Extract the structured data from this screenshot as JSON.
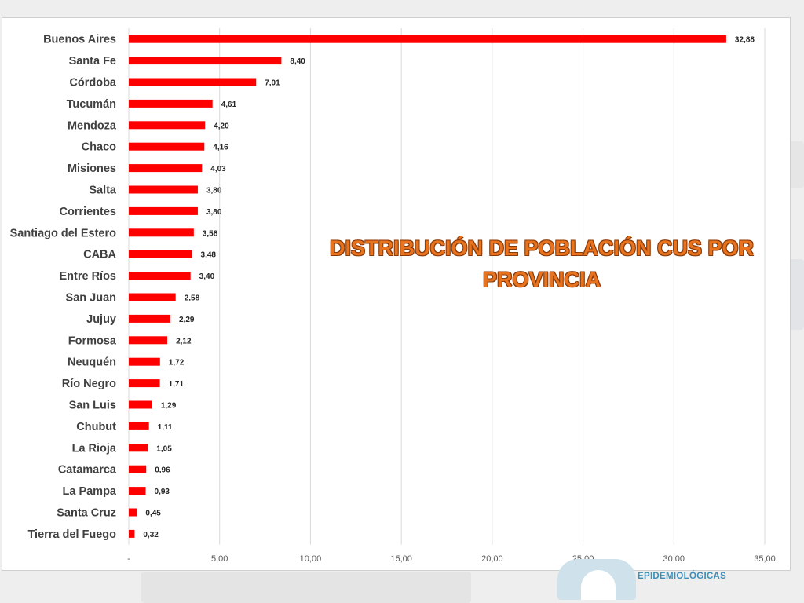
{
  "chart_data": {
    "type": "bar",
    "orientation": "horizontal",
    "title_lines": [
      "DISTRIBUCIÓN DE POBLACIÓN CUS POR",
      "PROVINCIA"
    ],
    "categories": [
      "Buenos Aires",
      "Santa Fe",
      "Córdoba",
      "Tucumán",
      "Mendoza",
      "Chaco",
      "Misiones",
      "Salta",
      "Corrientes",
      "Santiago del Estero",
      "CABA",
      "Entre Ríos",
      "San Juan",
      "Jujuy",
      "Formosa",
      "Neuquén",
      "Río Negro",
      "San Luis",
      "Chubut",
      "La Rioja",
      "Catamarca",
      "La Pampa",
      "Santa Cruz",
      "Tierra del Fuego"
    ],
    "values": [
      32.88,
      8.4,
      7.01,
      4.61,
      4.2,
      4.16,
      4.03,
      3.8,
      3.8,
      3.58,
      3.48,
      3.4,
      2.58,
      2.29,
      2.12,
      1.72,
      1.71,
      1.29,
      1.11,
      1.05,
      0.96,
      0.93,
      0.45,
      0.32
    ],
    "value_labels": [
      "32,88",
      "8,40",
      "7,01",
      "4,61",
      "4,20",
      "4,16",
      "4,03",
      "3,80",
      "3,80",
      "3,58",
      "3,48",
      "3,40",
      "2,58",
      "2,29",
      "2,12",
      "1,72",
      "1,71",
      "1,29",
      "1,11",
      "1,05",
      "0,96",
      "0,93",
      "0,45",
      "0,32"
    ],
    "xticks": [
      0,
      5,
      10,
      15,
      20,
      25,
      30,
      35
    ],
    "xtick_labels": [
      "-",
      "5,00",
      "10,00",
      "15,00",
      "20,00",
      "25,00",
      "30,00",
      "35,00"
    ],
    "xlim": [
      0,
      35
    ],
    "grid": true,
    "legend": false,
    "bar_color": "#ff0000"
  },
  "logo": {
    "text": "EPIDEMIOLÓGICAS"
  }
}
